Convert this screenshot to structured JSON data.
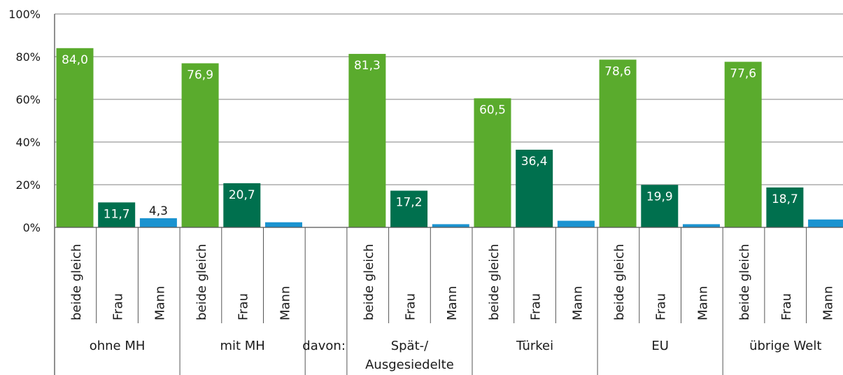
{
  "chart_data": {
    "type": "bar",
    "title": "",
    "xlabel": "",
    "ylabel": "",
    "ylim": [
      0,
      100
    ],
    "y_ticks": [
      "0%",
      "20%",
      "40%",
      "60%",
      "80%",
      "100%"
    ],
    "grid": true,
    "legend": "none",
    "davon_label": "davon:",
    "groups": [
      {
        "name": "ohne MH",
        "bars": [
          {
            "label": "beide gleich",
            "value": 84.0,
            "value_label": "84,0"
          },
          {
            "label": "Frau",
            "value": 11.7,
            "value_label": "11,7"
          },
          {
            "label": "Mann",
            "value": 4.3,
            "value_label": "4,3"
          }
        ]
      },
      {
        "name": "mit MH",
        "bars": [
          {
            "label": "beide gleich",
            "value": 76.9,
            "value_label": "76,9"
          },
          {
            "label": "Frau",
            "value": 20.7,
            "value_label": "20,7"
          },
          {
            "label": "Mann",
            "value": 2.4,
            "value_label": ""
          }
        ]
      },
      {
        "name": "Spät-/ Ausgesiedelte",
        "name_lines": [
          "Spät-/",
          "Ausgesiedelte"
        ],
        "bars": [
          {
            "label": "beide gleich",
            "value": 81.3,
            "value_label": "81,3"
          },
          {
            "label": "Frau",
            "value": 17.2,
            "value_label": "17,2"
          },
          {
            "label": "Mann",
            "value": 1.5,
            "value_label": ""
          }
        ]
      },
      {
        "name": "Türkei",
        "bars": [
          {
            "label": "beide gleich",
            "value": 60.5,
            "value_label": "60,5"
          },
          {
            "label": "Frau",
            "value": 36.4,
            "value_label": "36,4"
          },
          {
            "label": "Mann",
            "value": 3.1,
            "value_label": ""
          }
        ]
      },
      {
        "name": "EU",
        "bars": [
          {
            "label": "beide gleich",
            "value": 78.6,
            "value_label": "78,6"
          },
          {
            "label": "Frau",
            "value": 19.9,
            "value_label": "19,9"
          },
          {
            "label": "Mann",
            "value": 1.5,
            "value_label": ""
          }
        ]
      },
      {
        "name": "übrige Welt",
        "bars": [
          {
            "label": "beide gleich",
            "value": 77.6,
            "value_label": "77,6"
          },
          {
            "label": "Frau",
            "value": 18.7,
            "value_label": "18,7"
          },
          {
            "label": "Mann",
            "value": 3.7,
            "value_label": ""
          }
        ]
      }
    ],
    "colors": {
      "beide gleich": "#5aab2d",
      "Frau": "#00704e",
      "Mann": "#1b93d0",
      "grid": "#9a9a9a",
      "axis": "#555555"
    }
  }
}
